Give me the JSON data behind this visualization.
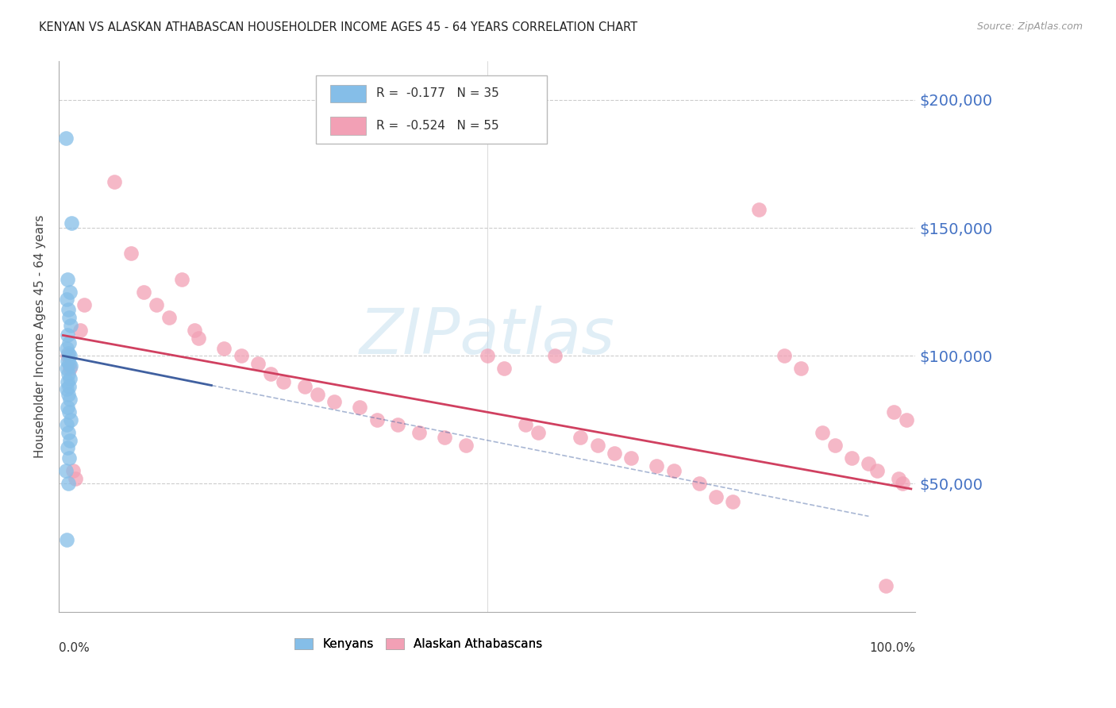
{
  "title": "KENYAN VS ALASKAN ATHABASCAN HOUSEHOLDER INCOME AGES 45 - 64 YEARS CORRELATION CHART",
  "source": "Source: ZipAtlas.com",
  "ylabel": "Householder Income Ages 45 - 64 years",
  "y_ticks": [
    50000,
    100000,
    150000,
    200000
  ],
  "y_tick_labels": [
    "$50,000",
    "$100,000",
    "$150,000",
    "$200,000"
  ],
  "y_min": 0,
  "y_max": 215000,
  "x_min": -0.005,
  "x_max": 1.005,
  "watermark": "ZIPatlas",
  "kenyan_color": "#85BEE8",
  "athabascan_color": "#F2A0B5",
  "kenyan_line_color": "#4060A0",
  "athabascan_line_color": "#D04060",
  "kenyan_R": -0.177,
  "kenyan_N": 35,
  "athabascan_R": -0.524,
  "athabascan_N": 55,
  "kenyan_x": [
    0.003,
    0.01,
    0.005,
    0.008,
    0.004,
    0.006,
    0.007,
    0.009,
    0.005,
    0.007,
    0.004,
    0.006,
    0.008,
    0.005,
    0.007,
    0.009,
    0.004,
    0.006,
    0.008,
    0.005,
    0.007,
    0.004,
    0.006,
    0.008,
    0.005,
    0.007,
    0.009,
    0.004,
    0.006,
    0.008,
    0.005,
    0.007,
    0.003,
    0.006,
    0.004
  ],
  "kenyan_y": [
    185000,
    152000,
    130000,
    125000,
    122000,
    118000,
    115000,
    112000,
    108000,
    105000,
    103000,
    101000,
    100000,
    98000,
    97000,
    96000,
    95000,
    93000,
    91000,
    90000,
    88000,
    87000,
    85000,
    83000,
    80000,
    78000,
    75000,
    73000,
    70000,
    67000,
    64000,
    60000,
    55000,
    50000,
    28000
  ],
  "athabascan_x": [
    0.005,
    0.008,
    0.012,
    0.015,
    0.02,
    0.025,
    0.06,
    0.08,
    0.095,
    0.11,
    0.125,
    0.14,
    0.155,
    0.16,
    0.19,
    0.21,
    0.23,
    0.245,
    0.26,
    0.285,
    0.3,
    0.32,
    0.35,
    0.37,
    0.395,
    0.42,
    0.45,
    0.475,
    0.5,
    0.52,
    0.545,
    0.56,
    0.58,
    0.61,
    0.63,
    0.65,
    0.67,
    0.7,
    0.72,
    0.75,
    0.77,
    0.79,
    0.82,
    0.85,
    0.87,
    0.895,
    0.91,
    0.93,
    0.95,
    0.96,
    0.97,
    0.98,
    0.985,
    0.99,
    0.995
  ],
  "athabascan_y": [
    100000,
    95000,
    55000,
    52000,
    110000,
    120000,
    168000,
    140000,
    125000,
    120000,
    115000,
    130000,
    110000,
    107000,
    103000,
    100000,
    97000,
    93000,
    90000,
    88000,
    85000,
    82000,
    80000,
    75000,
    73000,
    70000,
    68000,
    65000,
    100000,
    95000,
    73000,
    70000,
    100000,
    68000,
    65000,
    62000,
    60000,
    57000,
    55000,
    50000,
    45000,
    43000,
    157000,
    100000,
    95000,
    70000,
    65000,
    60000,
    58000,
    55000,
    10000,
    78000,
    52000,
    50000,
    75000
  ]
}
